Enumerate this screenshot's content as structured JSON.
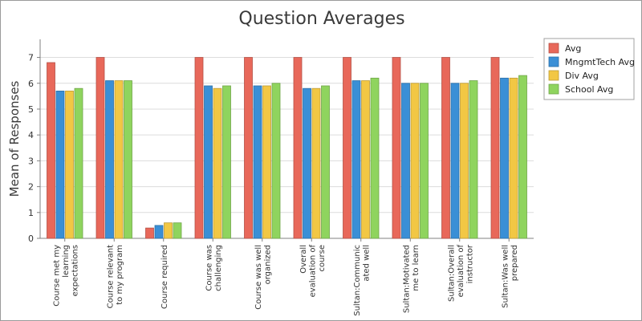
{
  "chart_data": {
    "type": "bar",
    "title": "Question Averages",
    "xlabel": "",
    "ylabel": "Mean of Responses",
    "ylim": [
      0,
      7.7
    ],
    "yticks": [
      0,
      1,
      2,
      3,
      4,
      5,
      6,
      7
    ],
    "grid": true,
    "legend_position": "right",
    "categories": [
      [
        "Course met my",
        "learning",
        "expectations"
      ],
      [
        "Course relevant",
        "to my program"
      ],
      [
        "Course required"
      ],
      [
        "Course was",
        "challenging"
      ],
      [
        "Course was well",
        "organized"
      ],
      [
        "Overall",
        "evaluation of",
        "course"
      ],
      [
        "Sultan:Communic",
        "ated well"
      ],
      [
        "Sultan:Motivated",
        "me to learn"
      ],
      [
        "Sultan:Overall",
        "evaluation of",
        "instructor"
      ],
      [
        "Sultan:Was well",
        "prepared"
      ]
    ],
    "series": [
      {
        "name": "Avg",
        "color": "#e8685a",
        "values": [
          6.8,
          7.0,
          0.4,
          7.0,
          7.0,
          7.0,
          7.0,
          7.0,
          7.0,
          7.0
        ]
      },
      {
        "name": "MngmtTech Avg",
        "color": "#3a8fd6",
        "values": [
          5.7,
          6.1,
          0.5,
          5.9,
          5.9,
          5.8,
          6.1,
          6.0,
          6.0,
          6.2
        ]
      },
      {
        "name": "Div Avg",
        "color": "#f2c744",
        "values": [
          5.7,
          6.1,
          0.6,
          5.8,
          5.9,
          5.8,
          6.1,
          6.0,
          6.0,
          6.2
        ]
      },
      {
        "name": "School Avg",
        "color": "#8fd45e",
        "values": [
          5.8,
          6.1,
          0.6,
          5.9,
          6.0,
          5.9,
          6.2,
          6.0,
          6.1,
          6.3
        ]
      }
    ]
  }
}
